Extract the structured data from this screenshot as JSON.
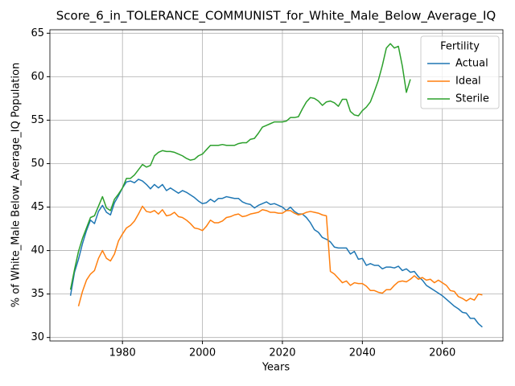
{
  "chart_data": {
    "type": "line",
    "title": "Score_6_in_TOLERANCE_COMMUNIST_for_White_Male_Below_Average_IQ",
    "xlabel": "Years",
    "ylabel": "% of White_Male Below_Average_IQ Population",
    "legend_title": "Fertility",
    "legend": "upper right",
    "grid": true,
    "xlim": [
      1961.85,
      2075.15
    ],
    "ylim": [
      29.6,
      65.4
    ],
    "xticks": [
      1980,
      2000,
      2020,
      2040,
      2060
    ],
    "yticks": [
      30,
      35,
      40,
      45,
      50,
      55,
      60,
      65
    ],
    "x": [
      1967,
      1968,
      1969,
      1970,
      1971,
      1972,
      1973,
      1974,
      1975,
      1976,
      1977,
      1978,
      1979,
      1980,
      1981,
      1982,
      1983,
      1984,
      1985,
      1986,
      1987,
      1988,
      1989,
      1990,
      1991,
      1992,
      1993,
      1994,
      1995,
      1996,
      1997,
      1998,
      1999,
      2000,
      2001,
      2002,
      2003,
      2004,
      2005,
      2006,
      2007,
      2008,
      2009,
      2010,
      2011,
      2012,
      2013,
      2014,
      2015,
      2016,
      2017,
      2018,
      2019,
      2020,
      2021,
      2022,
      2023,
      2024,
      2025,
      2026,
      2027,
      2028,
      2029,
      2030,
      2031,
      2032,
      2033,
      2034,
      2035,
      2036,
      2037,
      2038,
      2039,
      2040,
      2041,
      2042,
      2043,
      2044,
      2045,
      2046,
      2047,
      2048,
      2049,
      2050,
      2051,
      2052,
      2053,
      2054,
      2055,
      2056,
      2057,
      2058,
      2059,
      2060,
      2061,
      2062,
      2063,
      2064,
      2065,
      2066,
      2067,
      2068,
      2069,
      2070
    ],
    "series": [
      {
        "name": "Actual",
        "color": "#1f77b4",
        "values": [
          34.8,
          37.5,
          39.0,
          40.8,
          42.3,
          43.5,
          43.1,
          44.5,
          45.2,
          44.4,
          44.1,
          45.5,
          46.3,
          47.2,
          47.9,
          48.0,
          47.8,
          48.2,
          48.0,
          47.6,
          47.1,
          47.6,
          47.2,
          47.6,
          46.9,
          47.2,
          46.9,
          46.6,
          46.9,
          46.7,
          46.4,
          46.1,
          45.7,
          45.4,
          45.5,
          45.9,
          45.6,
          46.0,
          46.0,
          46.2,
          46.1,
          46.0,
          46.0,
          45.6,
          45.4,
          45.3,
          44.9,
          45.2,
          45.4,
          45.6,
          45.3,
          45.4,
          45.2,
          45.0,
          44.6,
          45.0,
          44.5,
          44.2,
          44.2,
          43.8,
          43.2,
          42.4,
          42.1,
          41.5,
          41.3,
          41.0,
          40.4,
          40.3,
          40.3,
          40.3,
          39.6,
          39.9,
          39.0,
          39.1,
          38.3,
          38.5,
          38.3,
          38.3,
          37.9,
          38.1,
          38.1,
          38.0,
          38.2,
          37.7,
          37.9,
          37.5,
          37.6,
          37.0,
          36.6,
          36.0,
          35.7,
          35.4,
          35.1,
          34.8,
          34.4,
          34.0,
          33.6,
          33.3,
          32.9,
          32.8,
          32.2,
          32.2,
          31.6,
          31.2
        ]
      },
      {
        "name": "Ideal",
        "color": "#ff7f0e",
        "values": [
          null,
          null,
          33.6,
          35.3,
          36.6,
          37.3,
          37.7,
          39.1,
          40.0,
          39.1,
          38.8,
          39.6,
          41.1,
          41.9,
          42.6,
          42.9,
          43.4,
          44.2,
          45.1,
          44.5,
          44.4,
          44.6,
          44.2,
          44.7,
          44.0,
          44.1,
          44.4,
          43.9,
          43.8,
          43.5,
          43.1,
          42.6,
          42.5,
          42.3,
          42.8,
          43.5,
          43.2,
          43.2,
          43.4,
          43.8,
          43.9,
          44.1,
          44.2,
          43.9,
          44.0,
          44.2,
          44.3,
          44.4,
          44.7,
          44.6,
          44.4,
          44.4,
          44.3,
          44.3,
          44.6,
          44.6,
          44.3,
          44.1,
          44.2,
          44.4,
          44.5,
          44.4,
          44.3,
          44.1,
          44.0,
          37.6,
          37.3,
          36.8,
          36.3,
          36.5,
          36.0,
          36.3,
          36.2,
          36.2,
          35.9,
          35.4,
          35.4,
          35.2,
          35.1,
          35.5,
          35.5,
          36.0,
          36.4,
          36.5,
          36.4,
          36.7,
          37.1,
          36.7,
          36.9,
          36.6,
          36.7,
          36.3,
          36.6,
          36.3,
          36.0,
          35.4,
          35.3,
          34.7,
          34.5,
          34.2,
          34.5,
          34.3,
          35.0,
          34.9
        ]
      },
      {
        "name": "Sterile",
        "color": "#2ca02c",
        "values": [
          35.5,
          37.8,
          39.9,
          41.4,
          42.6,
          43.8,
          44.0,
          45.1,
          46.2,
          44.9,
          44.6,
          45.9,
          46.5,
          47.2,
          48.3,
          48.3,
          48.7,
          49.3,
          49.9,
          49.6,
          49.8,
          50.9,
          51.3,
          51.5,
          51.4,
          51.4,
          51.3,
          51.1,
          50.9,
          50.6,
          50.4,
          50.5,
          50.9,
          51.1,
          51.6,
          52.1,
          52.1,
          52.1,
          52.2,
          52.1,
          52.1,
          52.1,
          52.3,
          52.4,
          52.4,
          52.8,
          52.9,
          53.5,
          54.2,
          54.4,
          54.6,
          54.8,
          54.8,
          54.8,
          54.9,
          55.3,
          55.3,
          55.4,
          56.3,
          57.1,
          57.6,
          57.5,
          57.2,
          56.7,
          57.1,
          57.2,
          57.0,
          56.6,
          57.4,
          57.4,
          56.0,
          55.6,
          55.5,
          56.1,
          56.5,
          57.1,
          58.3,
          59.6,
          61.3,
          63.3,
          63.8,
          63.3,
          63.5,
          61.2,
          58.2,
          59.7,
          null,
          null,
          null,
          null,
          null,
          null,
          null,
          null,
          null,
          null,
          null,
          null,
          null,
          null,
          null,
          null,
          null,
          null
        ]
      }
    ]
  }
}
